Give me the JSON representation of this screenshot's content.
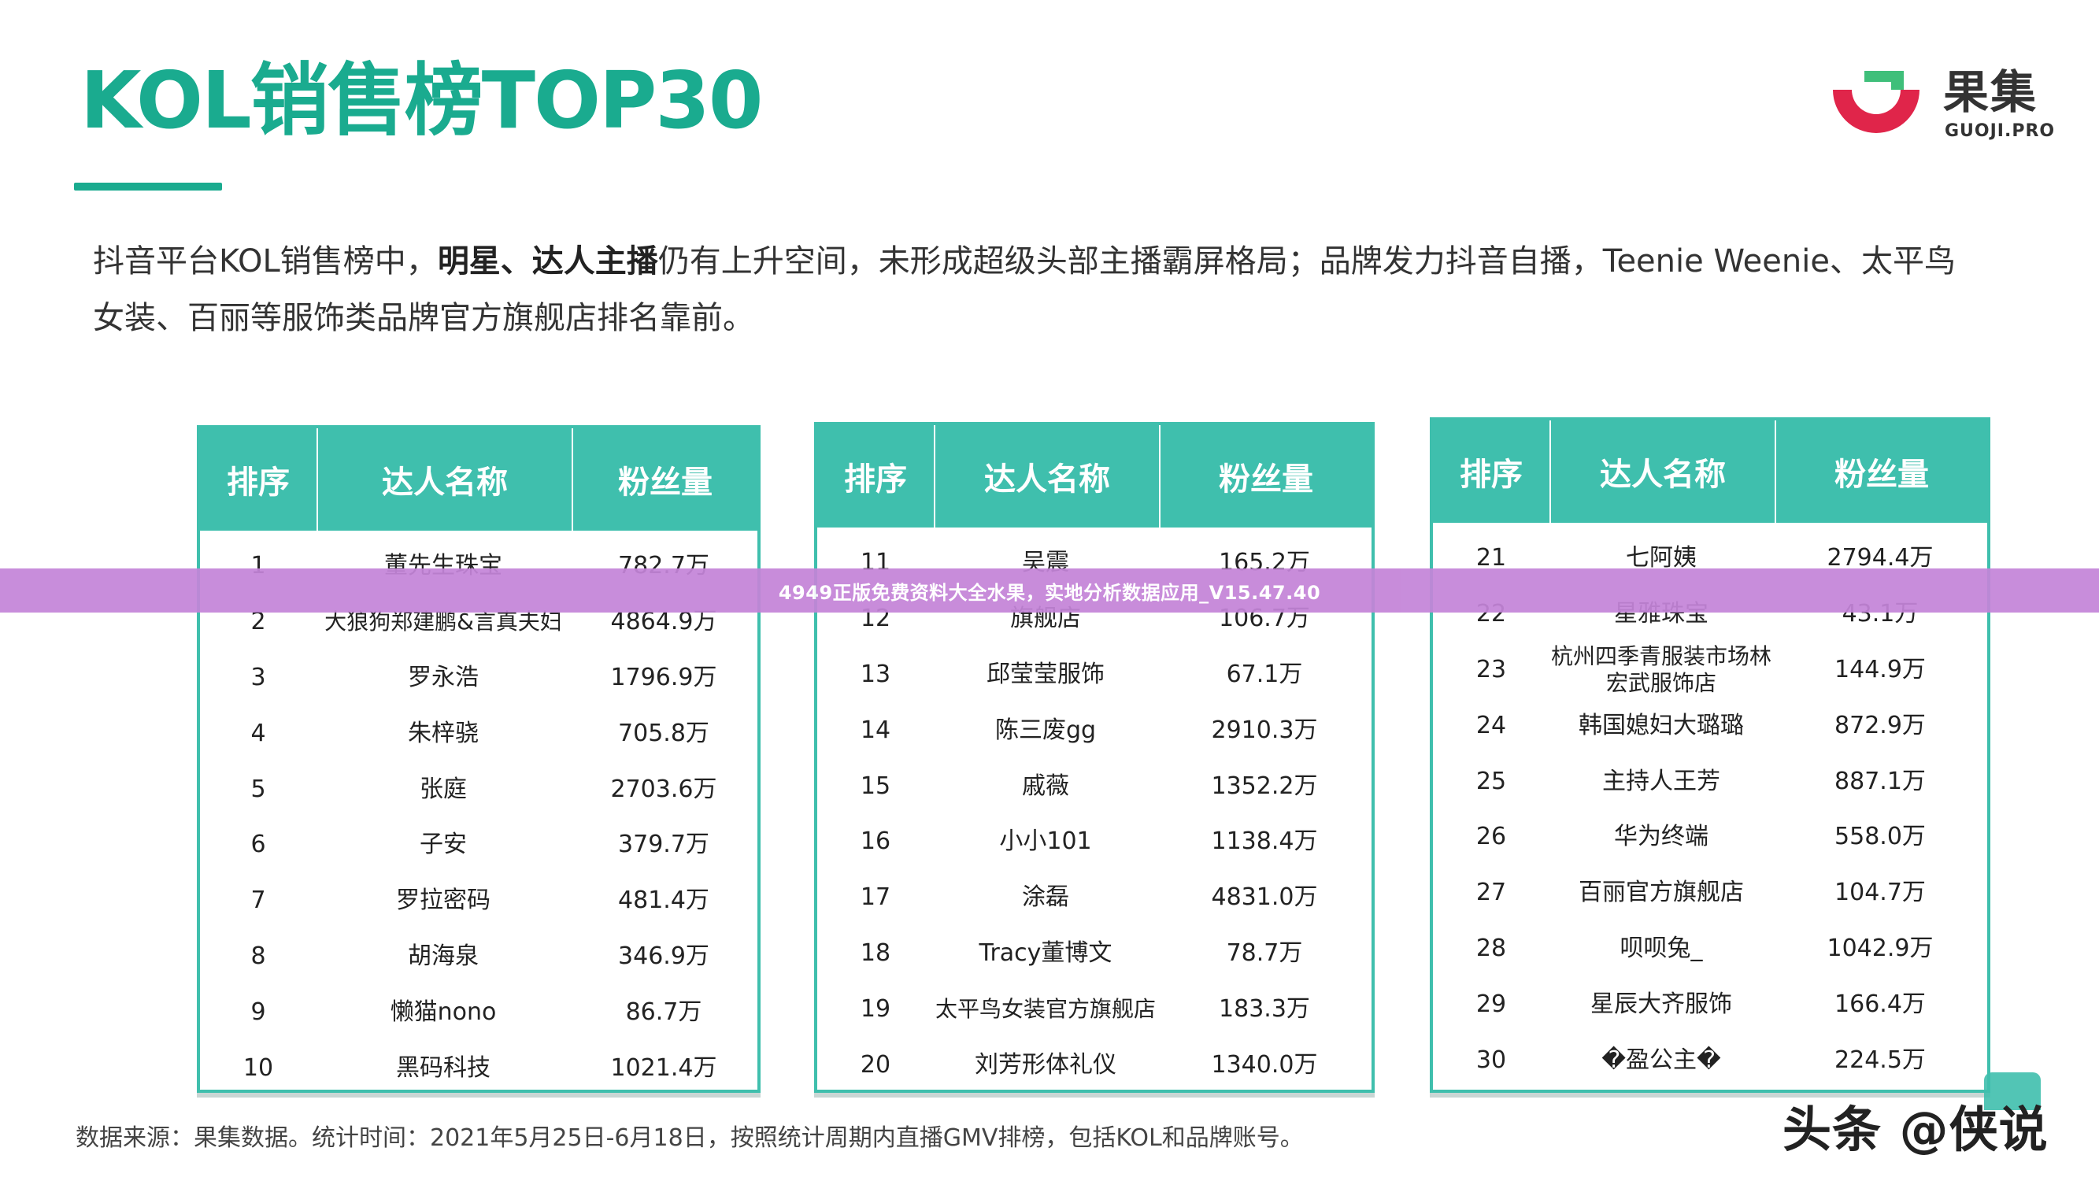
{
  "title": "KOL销售榜TOP30",
  "logo": {
    "cn": "果集",
    "en": "GUOJI.PRO"
  },
  "description": {
    "part1": "抖音平台KOL销售榜中，",
    "bold": "明星、达人主播",
    "part2": "仍有上升空间，未形成超级头部主播霸屏格局；品牌发力抖音自播，Teenie Weenie、太平鸟女装、百丽等服饰类品牌官方旗舰店排名靠前。"
  },
  "table_headers": {
    "rank": "排序",
    "name": "达人名称",
    "fans": "粉丝量"
  },
  "tables": [
    {
      "rows": [
        {
          "rank": "1",
          "name": "董先生珠宝",
          "fans": "782.7万"
        },
        {
          "rank": "2",
          "name": "大狼狗郑建鹏&言真夫妇",
          "fans": "4864.9万"
        },
        {
          "rank": "3",
          "name": "罗永浩",
          "fans": "1796.9万"
        },
        {
          "rank": "4",
          "name": "朱梓骁",
          "fans": "705.8万"
        },
        {
          "rank": "5",
          "name": "张庭",
          "fans": "2703.6万"
        },
        {
          "rank": "6",
          "name": "子安",
          "fans": "379.7万"
        },
        {
          "rank": "7",
          "name": "罗拉密码",
          "fans": "481.4万"
        },
        {
          "rank": "8",
          "name": "胡海泉",
          "fans": "346.9万"
        },
        {
          "rank": "9",
          "name": "懒猫nono",
          "fans": "86.7万"
        },
        {
          "rank": "10",
          "name": "黑码科技",
          "fans": "1021.4万"
        }
      ]
    },
    {
      "rows": [
        {
          "rank": "11",
          "name": "吴震",
          "fans": "165.2万"
        },
        {
          "rank": "12",
          "name": "旗舰店",
          "fans": "106.7万"
        },
        {
          "rank": "13",
          "name": "邱莹莹服饰",
          "fans": "67.1万"
        },
        {
          "rank": "14",
          "name": "陈三废gg",
          "fans": "2910.3万"
        },
        {
          "rank": "15",
          "name": "戚薇",
          "fans": "1352.2万"
        },
        {
          "rank": "16",
          "name": "小小101",
          "fans": "1138.4万"
        },
        {
          "rank": "17",
          "name": "涂磊",
          "fans": "4831.0万"
        },
        {
          "rank": "18",
          "name": "Tracy董博文",
          "fans": "78.7万"
        },
        {
          "rank": "19",
          "name": "太平鸟女装官方旗舰店",
          "fans": "183.3万"
        },
        {
          "rank": "20",
          "name": "刘芳形体礼仪",
          "fans": "1340.0万"
        }
      ]
    },
    {
      "rows": [
        {
          "rank": "21",
          "name": "七阿姨",
          "fans": "2794.4万"
        },
        {
          "rank": "22",
          "name": "星雅珠宝",
          "fans": "43.1万"
        },
        {
          "rank": "23",
          "name": "杭州四季青服装市场林宏武服饰店",
          "fans": "144.9万"
        },
        {
          "rank": "24",
          "name": "韩国媳妇大璐璐",
          "fans": "872.9万"
        },
        {
          "rank": "25",
          "name": "主持人王芳",
          "fans": "887.1万"
        },
        {
          "rank": "26",
          "name": "华为终端",
          "fans": "558.0万"
        },
        {
          "rank": "27",
          "name": "百丽官方旗舰店",
          "fans": "104.7万"
        },
        {
          "rank": "28",
          "name": "呗呗兔_",
          "fans": "1042.9万"
        },
        {
          "rank": "29",
          "name": "星辰大齐服饰",
          "fans": "166.4万"
        },
        {
          "rank": "30",
          "name": "�盈公主�",
          "fans": "224.5万"
        }
      ]
    }
  ],
  "footnote": "数据来源：果集数据。统计时间：2021年5月25日-6月18日，按照统计周期内直播GMV排榜，包括KOL和品牌账号。",
  "banner": "4949正版免费资料大全水果，实地分析数据应用_V15.47.40",
  "source_mark": "头条 @侠说",
  "colors": {
    "accent": "#1aab8f",
    "table_header": "#3fbfad",
    "banner": "#c484d8",
    "logo_red": "#e0254a",
    "logo_green": "#3fbf7a"
  }
}
